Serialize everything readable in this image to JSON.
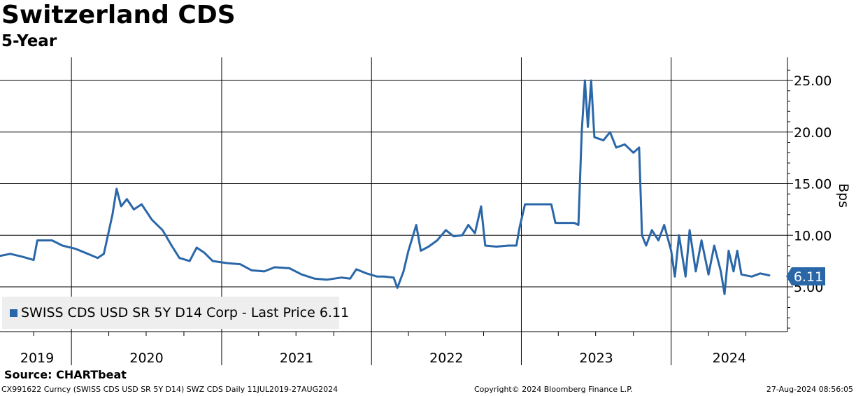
{
  "title": "Switzerland CDS",
  "subtitle": "5-Year",
  "source": "Source: CHARTbeat",
  "footer": {
    "left": "CX991622 Curncy (SWISS CDS USD SR 5Y D14) SWZ CDS  Daily 11JUL2019-27AUG2024",
    "middle": "Copyright© 2024 Bloomberg Finance L.P.",
    "right": "27-Aug-2024 08:56:05"
  },
  "legend": {
    "label": "SWISS CDS USD SR 5Y D14 Corp - Last Price 6.11"
  },
  "last_value_label": "6.11",
  "colors": {
    "series": "#2a67a8",
    "grid": "#000000",
    "legend_bg": "#eeeeee"
  },
  "chart_data": {
    "type": "line",
    "title": "Switzerland CDS",
    "subtitle": "5-Year",
    "ylabel": "Bps",
    "xlabel": "",
    "ylim": [
      0,
      27
    ],
    "yticks": [
      5,
      10,
      15,
      20,
      25
    ],
    "ytick_labels": [
      "5.00",
      "10.00",
      "15.00",
      "20.00",
      "25.00"
    ],
    "xlim": [
      "2019-07-11",
      "2024-08-27"
    ],
    "year_labels": [
      "2019",
      "2020",
      "2021",
      "2022",
      "2023",
      "2024"
    ],
    "last_value": 6.11,
    "series": [
      {
        "name": "SWISS CDS USD SR 5Y D14 Corp - Last Price 6.11",
        "points": [
          [
            "2019-07-11",
            8.0
          ],
          [
            "2019-08-05",
            8.2
          ],
          [
            "2019-09-05",
            7.9
          ],
          [
            "2019-10-01",
            7.6
          ],
          [
            "2019-10-10",
            9.5
          ],
          [
            "2019-11-15",
            9.5
          ],
          [
            "2019-12-10",
            9.0
          ],
          [
            "2020-01-10",
            8.7
          ],
          [
            "2020-02-10",
            8.2
          ],
          [
            "2020-03-05",
            7.8
          ],
          [
            "2020-03-20",
            8.2
          ],
          [
            "2020-04-10",
            12.0
          ],
          [
            "2020-04-20",
            14.5
          ],
          [
            "2020-05-01",
            12.8
          ],
          [
            "2020-05-15",
            13.5
          ],
          [
            "2020-06-01",
            12.5
          ],
          [
            "2020-06-20",
            13.0
          ],
          [
            "2020-07-15",
            11.5
          ],
          [
            "2020-08-10",
            10.5
          ],
          [
            "2020-09-01",
            9.0
          ],
          [
            "2020-09-20",
            7.8
          ],
          [
            "2020-10-15",
            7.5
          ],
          [
            "2020-11-01",
            8.8
          ],
          [
            "2020-11-20",
            8.3
          ],
          [
            "2020-12-10",
            7.5
          ],
          [
            "2021-01-15",
            7.3
          ],
          [
            "2021-02-15",
            7.2
          ],
          [
            "2021-03-15",
            6.6
          ],
          [
            "2021-04-15",
            6.5
          ],
          [
            "2021-05-10",
            6.9
          ],
          [
            "2021-06-15",
            6.8
          ],
          [
            "2021-07-15",
            6.2
          ],
          [
            "2021-08-15",
            5.8
          ],
          [
            "2021-09-15",
            5.7
          ],
          [
            "2021-10-20",
            5.9
          ],
          [
            "2021-11-10",
            5.8
          ],
          [
            "2021-11-25",
            6.7
          ],
          [
            "2021-12-20",
            6.3
          ],
          [
            "2022-01-15",
            6.0
          ],
          [
            "2022-02-01",
            6.0
          ],
          [
            "2022-02-24",
            5.9
          ],
          [
            "2022-03-05",
            4.9
          ],
          [
            "2022-03-20",
            6.5
          ],
          [
            "2022-04-01",
            8.5
          ],
          [
            "2022-04-20",
            11.0
          ],
          [
            "2022-05-01",
            8.5
          ],
          [
            "2022-05-20",
            8.9
          ],
          [
            "2022-06-10",
            9.5
          ],
          [
            "2022-07-01",
            10.5
          ],
          [
            "2022-07-20",
            9.9
          ],
          [
            "2022-08-10",
            10.0
          ],
          [
            "2022-08-25",
            11.0
          ],
          [
            "2022-09-10",
            10.2
          ],
          [
            "2022-09-25",
            12.8
          ],
          [
            "2022-10-05",
            9.0
          ],
          [
            "2022-11-01",
            8.9
          ],
          [
            "2022-12-01",
            9.0
          ],
          [
            "2022-12-20",
            9.0
          ],
          [
            "2022-12-28",
            10.8
          ],
          [
            "2023-01-10",
            13.0
          ],
          [
            "2023-02-15",
            13.0
          ],
          [
            "2023-03-15",
            13.0
          ],
          [
            "2023-03-25",
            11.2
          ],
          [
            "2023-05-10",
            11.2
          ],
          [
            "2023-05-20",
            11.0
          ],
          [
            "2023-05-28",
            20.0
          ],
          [
            "2023-06-05",
            25.0
          ],
          [
            "2023-06-12",
            20.5
          ],
          [
            "2023-06-20",
            25.0
          ],
          [
            "2023-06-28",
            19.5
          ],
          [
            "2023-07-20",
            19.2
          ],
          [
            "2023-08-05",
            20.0
          ],
          [
            "2023-08-20",
            18.5
          ],
          [
            "2023-09-10",
            18.8
          ],
          [
            "2023-10-01",
            18.0
          ],
          [
            "2023-10-15",
            18.5
          ],
          [
            "2023-10-22",
            10.0
          ],
          [
            "2023-11-01",
            9.0
          ],
          [
            "2023-11-15",
            10.5
          ],
          [
            "2023-12-01",
            9.5
          ],
          [
            "2023-12-15",
            11.0
          ],
          [
            "2024-01-01",
            8.5
          ],
          [
            "2024-01-10",
            6.0
          ],
          [
            "2024-01-20",
            10.0
          ],
          [
            "2024-02-05",
            6.0
          ],
          [
            "2024-02-15",
            10.5
          ],
          [
            "2024-03-01",
            6.5
          ],
          [
            "2024-03-15",
            9.5
          ],
          [
            "2024-04-01",
            6.2
          ],
          [
            "2024-04-15",
            9.0
          ],
          [
            "2024-05-01",
            6.5
          ],
          [
            "2024-05-10",
            4.3
          ],
          [
            "2024-05-20",
            8.5
          ],
          [
            "2024-06-01",
            6.5
          ],
          [
            "2024-06-10",
            8.5
          ],
          [
            "2024-06-20",
            6.2
          ],
          [
            "2024-07-15",
            6.0
          ],
          [
            "2024-08-05",
            6.3
          ],
          [
            "2024-08-27",
            6.11
          ]
        ]
      }
    ]
  }
}
